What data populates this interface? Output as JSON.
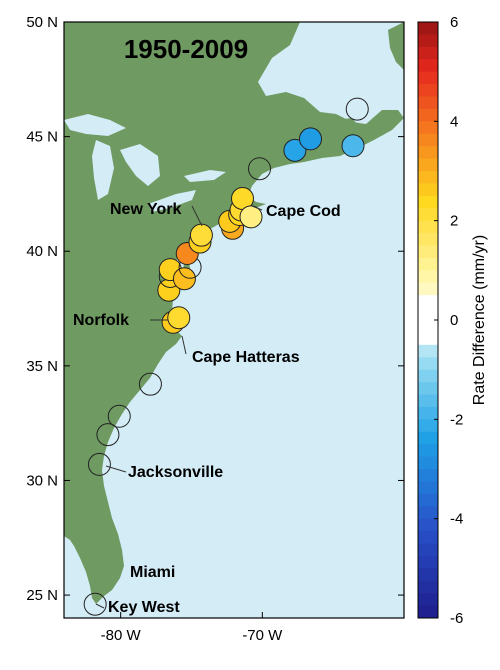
{
  "title": "1950-2009",
  "axes": {
    "lat_ticks": [
      {
        "value": 25,
        "label": "25 N"
      },
      {
        "value": 30,
        "label": "30 N"
      },
      {
        "value": 35,
        "label": "35 N"
      },
      {
        "value": 40,
        "label": "40 N"
      },
      {
        "value": 45,
        "label": "45 N"
      },
      {
        "value": 50,
        "label": "50 N"
      }
    ],
    "lon_ticks": [
      {
        "value": -80,
        "label": "-80 W"
      },
      {
        "value": -70,
        "label": "-70 W"
      }
    ],
    "lat_range": [
      24,
      50
    ],
    "lon_range": [
      -84,
      -60
    ]
  },
  "colorbar": {
    "title": "Rate Difference (mm/yr)",
    "min": -6,
    "max": 6,
    "tick_labels": [
      "6",
      "4",
      "2",
      "0",
      "-2",
      "-4",
      "-6"
    ]
  },
  "places": {
    "new_york": "New York",
    "cape_cod": "Cape Cod",
    "norfolk": "Norfolk",
    "cape_hatteras": "Cape Hatteras",
    "jacksonville": "Jacksonville",
    "miami": "Miami",
    "key_west": "Key West"
  },
  "colors": {
    "land": "#6f9a62",
    "water": "#d3ecf6",
    "marker_outline": "#222222"
  },
  "stations": [
    {
      "lon": -81.8,
      "lat": 24.6,
      "value": 0
    },
    {
      "lon": -81.5,
      "lat": 30.7,
      "value": 0
    },
    {
      "lon": -80.9,
      "lat": 32.0,
      "value": 0
    },
    {
      "lon": -80.1,
      "lat": 32.8,
      "value": 0
    },
    {
      "lon": -77.9,
      "lat": 34.2,
      "value": 0
    },
    {
      "lon": -76.3,
      "lat": 36.9,
      "value": 2.6
    },
    {
      "lon": -75.9,
      "lat": 37.1,
      "value": 2.2
    },
    {
      "lon": -76.6,
      "lat": 38.3,
      "value": 2.5
    },
    {
      "lon": -76.5,
      "lat": 38.9,
      "value": 0
    },
    {
      "lon": -76.5,
      "lat": 39.2,
      "value": 2.5
    },
    {
      "lon": -75.5,
      "lat": 38.8,
      "value": 2.8
    },
    {
      "lon": -75.1,
      "lat": 39.3,
      "value": 0
    },
    {
      "lon": -75.3,
      "lat": 39.9,
      "value": 3.6
    },
    {
      "lon": -74.4,
      "lat": 40.4,
      "value": 2.5
    },
    {
      "lon": -74.3,
      "lat": 40.7,
      "value": 2.1
    },
    {
      "lon": -72.1,
      "lat": 41.0,
      "value": 3.1
    },
    {
      "lon": -72.3,
      "lat": 41.3,
      "value": 2.6
    },
    {
      "lon": -71.6,
      "lat": 41.6,
      "value": 2.4
    },
    {
      "lon": -71.5,
      "lat": 41.8,
      "value": 2.2
    },
    {
      "lon": -71.4,
      "lat": 42.3,
      "value": 2.3
    },
    {
      "lon": -70.8,
      "lat": 41.5,
      "value": 1.3
    },
    {
      "lon": -70.2,
      "lat": 43.6,
      "value": 0
    },
    {
      "lon": -67.7,
      "lat": 44.4,
      "value": -2.3
    },
    {
      "lon": -66.6,
      "lat": 44.9,
      "value": -2.5
    },
    {
      "lon": -63.6,
      "lat": 44.6,
      "value": -1.8
    },
    {
      "lon": -63.3,
      "lat": 46.2,
      "value": 0
    }
  ]
}
